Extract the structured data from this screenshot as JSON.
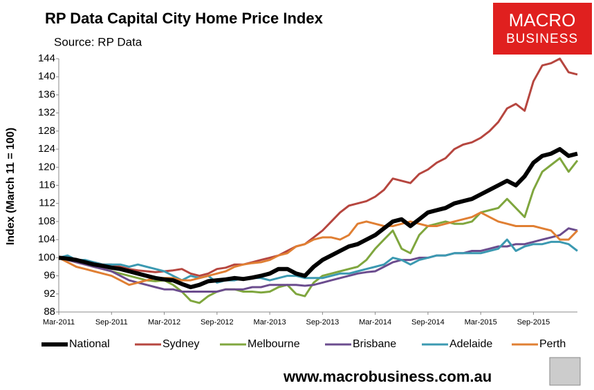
{
  "chart_data": {
    "type": "line",
    "title": "RP Data Capital City Home Price Index",
    "subtitle": "Source: RP Data",
    "logo": [
      "MACRO",
      "BUSINESS"
    ],
    "footer": "www.macrobusiness.com.au",
    "y_label": "Index (March 11 = 100)",
    "categories": [
      "Mar-2011",
      null,
      null,
      null,
      null,
      null,
      "Sep-2011",
      null,
      null,
      null,
      null,
      null,
      "Mar-2012",
      null,
      null,
      null,
      null,
      null,
      "Sep-2012",
      null,
      null,
      null,
      null,
      null,
      "Mar-2013",
      null,
      null,
      null,
      null,
      null,
      "Sep-2013",
      null,
      null,
      null,
      null,
      null,
      "Mar-2014",
      null,
      null,
      null,
      null,
      null,
      "Sep-2014",
      null,
      null,
      null,
      null,
      null,
      "Mar-2015",
      null,
      null,
      null,
      null,
      null,
      "Sep-2015",
      null,
      null,
      null,
      null,
      null
    ],
    "ylim": [
      88,
      144
    ],
    "yticks": [
      88,
      92,
      96,
      100,
      104,
      108,
      112,
      116,
      120,
      124,
      128,
      132,
      136,
      140,
      144
    ],
    "grid": false,
    "legend": "bottom",
    "series": [
      {
        "name": "National",
        "color": "#000000",
        "values": [
          100,
          99.8,
          99.5,
          99,
          98.5,
          98.2,
          97.8,
          97.5,
          97,
          96.5,
          96,
          95.5,
          95.2,
          95,
          94.2,
          93.5,
          94,
          94.8,
          95,
          95.2,
          95.5,
          95.3,
          95.6,
          96,
          96.5,
          97.5,
          97.5,
          96.5,
          96,
          98,
          99.5,
          100.5,
          101.5,
          102.5,
          103,
          104,
          105,
          106.5,
          108,
          108.5,
          107,
          108.5,
          110,
          110.5,
          111,
          112,
          112.5,
          113,
          114,
          115,
          116,
          117,
          116,
          118,
          121,
          122.5,
          123,
          124,
          122.5,
          123
        ]
      },
      {
        "name": "Sydney",
        "color": "#b6463f",
        "values": [
          100,
          99.5,
          99,
          98.8,
          99,
          98.5,
          98.5,
          98,
          97.5,
          97.2,
          97,
          96.8,
          97,
          97.2,
          97.5,
          96.5,
          96,
          96.5,
          97.5,
          97.8,
          98.5,
          98.5,
          99,
          99.5,
          100,
          100.5,
          101.5,
          102.5,
          103,
          104.5,
          106,
          108,
          110,
          111.5,
          112,
          112.5,
          113.5,
          115,
          117.5,
          117,
          116.5,
          118.5,
          119.5,
          121,
          122,
          124,
          125,
          125.5,
          126.5,
          128,
          130,
          133,
          134,
          132.5,
          139,
          142.5,
          143,
          144,
          141,
          140.5
        ]
      },
      {
        "name": "Melbourne",
        "color": "#7fa63e",
        "values": [
          100,
          99.5,
          99,
          98.5,
          98,
          97.5,
          97,
          96.5,
          96,
          95.5,
          95,
          94.8,
          95,
          94,
          92.5,
          90.5,
          90,
          91.5,
          92.5,
          93,
          93,
          92.5,
          92.5,
          92.3,
          92.5,
          93.5,
          94,
          92,
          91.5,
          94.5,
          96,
          96.5,
          97,
          97.5,
          98,
          99.5,
          102,
          104,
          106,
          102,
          101,
          105,
          107,
          107.5,
          108,
          107.5,
          107.5,
          108,
          110,
          110.5,
          111,
          113,
          111,
          109,
          115,
          119,
          120.5,
          122,
          119,
          121.5
        ]
      },
      {
        "name": "Brisbane",
        "color": "#6b4c8e",
        "values": [
          100,
          99.5,
          99,
          98.5,
          98,
          97.5,
          97,
          96,
          95,
          94.5,
          94,
          93.5,
          93,
          93,
          92.5,
          92.5,
          92.5,
          92.5,
          92.5,
          93,
          93,
          93,
          93.5,
          93.5,
          94,
          94,
          94,
          94,
          93.8,
          94,
          94.5,
          95,
          95.5,
          96,
          96.5,
          96.8,
          97,
          98,
          99,
          99.5,
          99.5,
          100,
          100,
          100.5,
          100.5,
          101,
          101,
          101.5,
          101.5,
          102,
          102.5,
          102.5,
          103,
          103,
          103.5,
          104,
          104.5,
          105,
          106.5,
          106
        ]
      },
      {
        "name": "Adelaide",
        "color": "#3b99b1",
        "values": [
          100,
          100.5,
          99.5,
          99.5,
          99,
          98.5,
          98.5,
          98.5,
          98,
          98.5,
          98,
          97.5,
          97,
          96,
          95,
          96,
          95.5,
          96,
          94.5,
          95,
          95,
          95.5,
          95.5,
          95.5,
          95,
          95.5,
          96,
          96,
          95.5,
          95.5,
          95.5,
          96,
          96.5,
          96.5,
          97,
          97.5,
          98,
          98.5,
          100,
          99.5,
          98.5,
          99.5,
          100,
          100.5,
          100.5,
          101,
          101,
          101,
          101,
          101.5,
          102,
          104,
          101.5,
          102.5,
          103,
          103,
          103.5,
          103.5,
          103,
          101.5
        ]
      },
      {
        "name": "Perth",
        "color": "#e07f33",
        "values": [
          100,
          99,
          98,
          97.5,
          97,
          96.5,
          96,
          95,
          94,
          94.5,
          95,
          95.5,
          95.5,
          95.5,
          95,
          95,
          95.5,
          96,
          96.5,
          97,
          98,
          98.5,
          98.8,
          99,
          99.5,
          100.5,
          101,
          102.5,
          103,
          104,
          104.5,
          104.5,
          104,
          105,
          107.5,
          108,
          107.5,
          107,
          107,
          107.5,
          108,
          107.5,
          107,
          107,
          107.5,
          108,
          108.5,
          109,
          110,
          109,
          108,
          107.5,
          107,
          107,
          107,
          106.5,
          106,
          104,
          104,
          106
        ]
      }
    ]
  }
}
